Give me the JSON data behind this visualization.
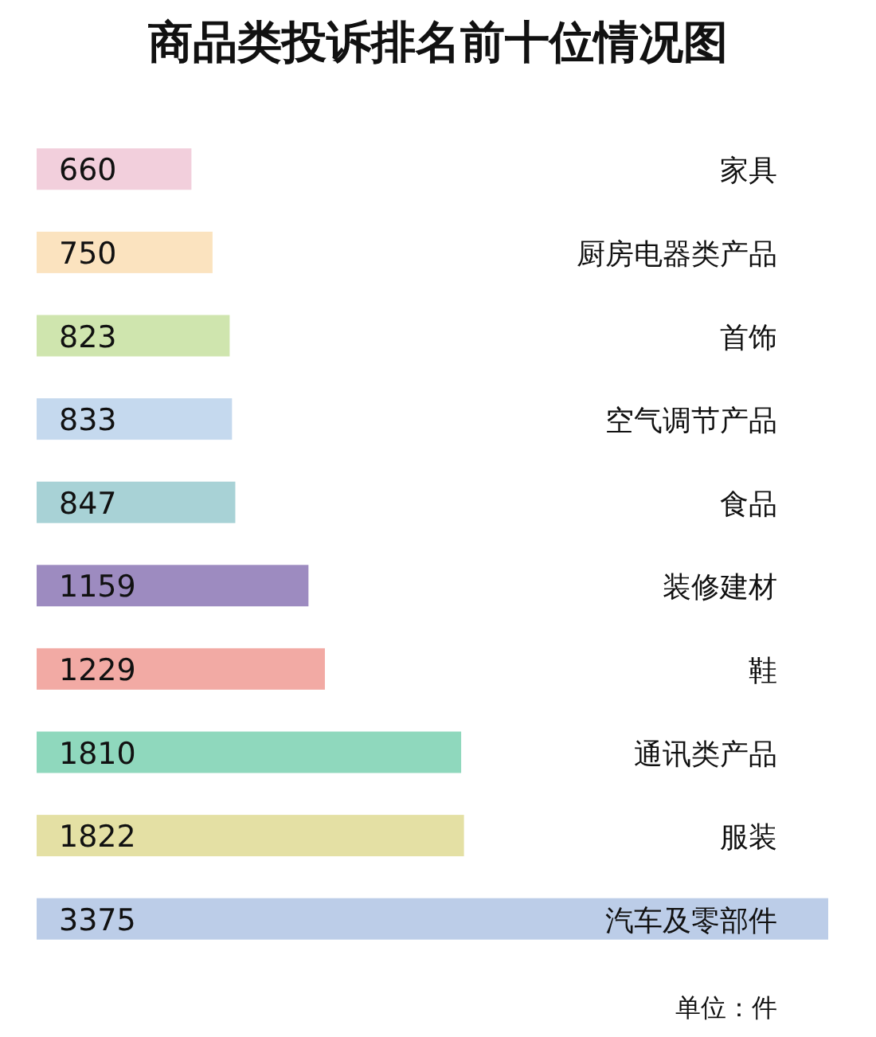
{
  "chart_data": {
    "type": "bar",
    "orientation": "horizontal",
    "title": "商品类投诉排名前十位情况图",
    "categories": [
      "家具",
      "厨房电器类产品",
      "首饰",
      "空气调节产品",
      "食品",
      "装修建材",
      "鞋",
      "通讯类产品",
      "服装",
      "汽车及零部件"
    ],
    "values": [
      660,
      750,
      823,
      833,
      847,
      1159,
      1229,
      1810,
      1822,
      3375
    ],
    "colors": [
      "#f2cfdc",
      "#fbe3bf",
      "#cfe5ae",
      "#c5d9ee",
      "#a8d2d6",
      "#9d8bc0",
      "#f2aaa4",
      "#8fd8bd",
      "#e4e0a4",
      "#bccde8"
    ],
    "data_labels": true,
    "annotations": [
      "单位：件"
    ]
  }
}
